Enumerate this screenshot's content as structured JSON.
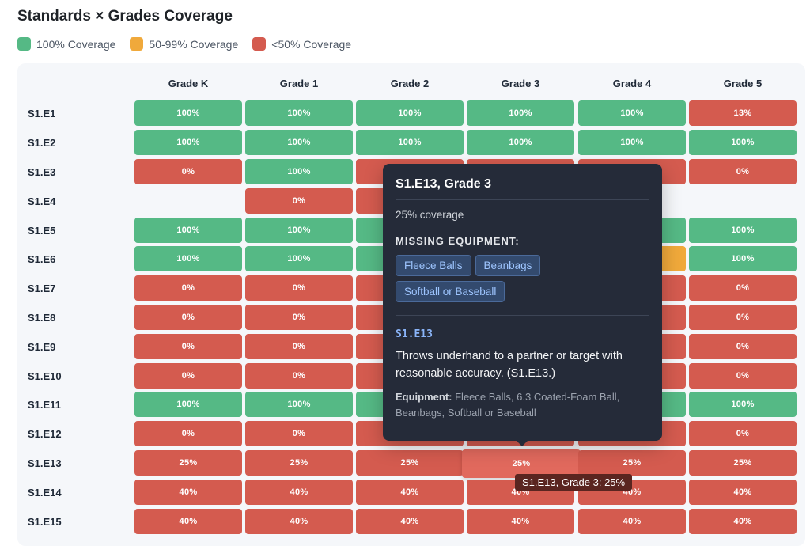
{
  "title": "Standards × Grades Coverage",
  "legend": [
    {
      "label": "100% Coverage",
      "color": "#55b985"
    },
    {
      "label": "50-99% Coverage",
      "color": "#f0a93b"
    },
    {
      "label": "<50% Coverage",
      "color": "#d45b4f"
    }
  ],
  "columns": [
    "Grade K",
    "Grade 1",
    "Grade 2",
    "Grade 3",
    "Grade 4",
    "Grade 5"
  ],
  "rows": [
    {
      "label": "S1.E1",
      "cells": [
        "100%",
        "100%",
        "100%",
        "100%",
        "100%",
        "13%"
      ]
    },
    {
      "label": "S1.E2",
      "cells": [
        "100%",
        "100%",
        "100%",
        "100%",
        "100%",
        "100%"
      ]
    },
    {
      "label": "S1.E3",
      "cells": [
        "0%",
        "100%",
        "",
        "",
        "",
        "0%"
      ]
    },
    {
      "label": "S1.E4",
      "cells": [
        "",
        "0%",
        "",
        "",
        "",
        ""
      ]
    },
    {
      "label": "S1.E5",
      "cells": [
        "100%",
        "100%",
        "",
        "",
        "",
        "100%"
      ]
    },
    {
      "label": "S1.E6",
      "cells": [
        "100%",
        "100%",
        "",
        "",
        "",
        "100%"
      ]
    },
    {
      "label": "S1.E7",
      "cells": [
        "0%",
        "0%",
        "",
        "",
        "",
        "0%"
      ]
    },
    {
      "label": "S1.E8",
      "cells": [
        "0%",
        "0%",
        "",
        "",
        "",
        "0%"
      ]
    },
    {
      "label": "S1.E9",
      "cells": [
        "0%",
        "0%",
        "",
        "",
        "",
        "0%"
      ]
    },
    {
      "label": "S1.E10",
      "cells": [
        "0%",
        "0%",
        "",
        "",
        "",
        "0%"
      ]
    },
    {
      "label": "S1.E11",
      "cells": [
        "100%",
        "100%",
        "",
        "",
        "",
        "100%"
      ]
    },
    {
      "label": "S1.E12",
      "cells": [
        "0%",
        "0%",
        "",
        "",
        "",
        "0%"
      ]
    },
    {
      "label": "S1.E13",
      "cells": [
        "25%",
        "25%",
        "25%",
        "25%",
        "25%",
        "25%"
      ]
    },
    {
      "label": "S1.E14",
      "cells": [
        "40%",
        "40%",
        "40%",
        "40%",
        "40%",
        "40%"
      ]
    },
    {
      "label": "S1.E15",
      "cells": [
        "40%",
        "40%",
        "40%",
        "40%",
        "40%",
        "40%"
      ]
    }
  ],
  "cell_colors": [
    [
      "green",
      "green",
      "green",
      "green",
      "green",
      "red"
    ],
    [
      "green",
      "green",
      "green",
      "green",
      "green",
      "green"
    ],
    [
      "red",
      "green",
      "red",
      "red",
      "red",
      "red"
    ],
    [
      "empty",
      "red",
      "red",
      "empty",
      "empty",
      "empty"
    ],
    [
      "green",
      "green",
      "green",
      "green",
      "green",
      "green"
    ],
    [
      "green",
      "green",
      "green",
      "green",
      "orange",
      "green"
    ],
    [
      "red",
      "red",
      "red",
      "red",
      "red",
      "red"
    ],
    [
      "red",
      "red",
      "red",
      "red",
      "red",
      "red"
    ],
    [
      "red",
      "red",
      "red",
      "red",
      "red",
      "red"
    ],
    [
      "red",
      "red",
      "red",
      "red",
      "red",
      "red"
    ],
    [
      "green",
      "green",
      "green",
      "green",
      "green",
      "green"
    ],
    [
      "red",
      "red",
      "red",
      "red",
      "red",
      "red"
    ],
    [
      "red",
      "red",
      "red",
      "red",
      "red",
      "red"
    ],
    [
      "red",
      "red",
      "red",
      "red",
      "red",
      "red"
    ],
    [
      "red",
      "red",
      "red",
      "red",
      "red",
      "red"
    ]
  ],
  "tooltip": {
    "title": "S1.E13, Grade 3",
    "coverage": "25% coverage",
    "missing_title": "MISSING EQUIPMENT:",
    "missing": [
      "Fleece Balls",
      "Beanbags",
      "Softball or Baseball"
    ],
    "code": "S1.E13",
    "description": "Throws underhand to a partner or target with reasonable accuracy. (S1.E13.)",
    "equipment_label": "Equipment:",
    "equipment": " Fleece Balls, 6.3 Coated-Foam Ball, Beanbags, Softball or Baseball"
  },
  "hover_tip": "S1.E13, Grade 3: 25%"
}
